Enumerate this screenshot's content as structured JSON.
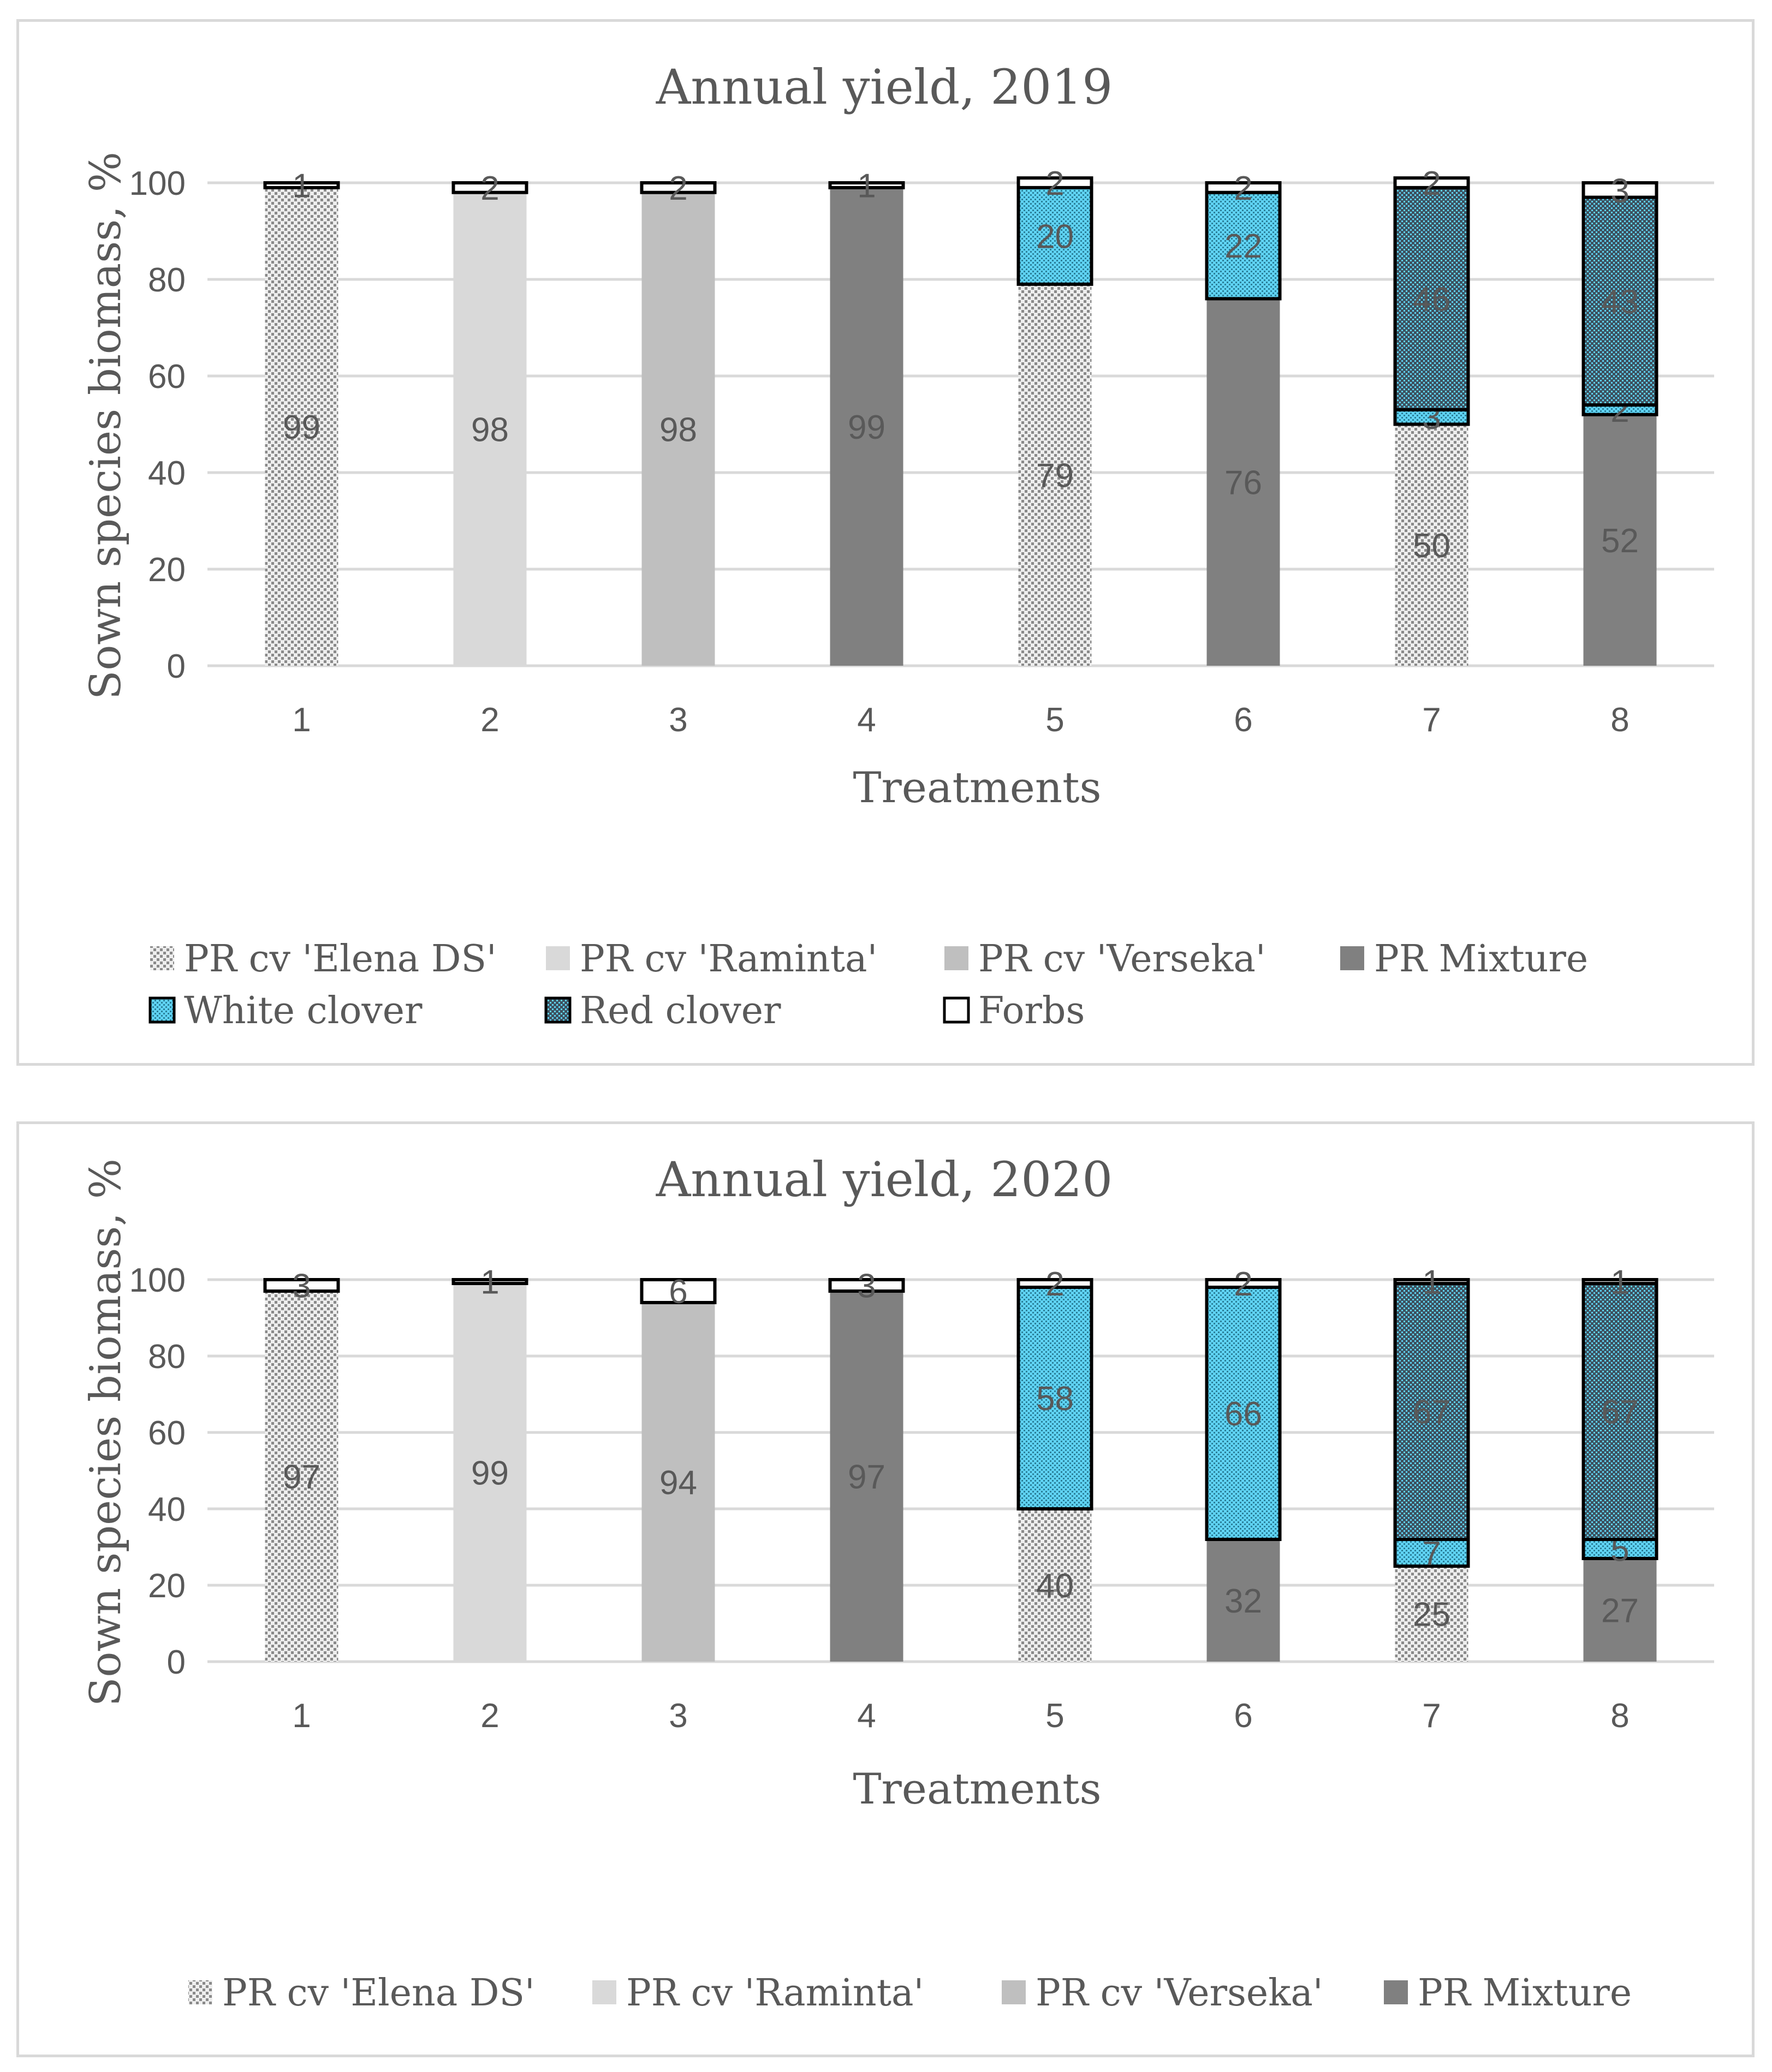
{
  "colors": {
    "grid": "#d9d9d9",
    "PR cv 'Elena DS'": "#c8c8c8",
    "PR cv 'Raminta'": "#d9d9d9",
    "PR cv 'Verseka'": "#bfbfbf",
    "PR Mixture": "#808080",
    "White clover": "#5fd3f3",
    "Red clover": "#3b4f5c",
    "Forbs": "#ffffff",
    "text": "#595959"
  },
  "chart_data": [
    {
      "type": "bar",
      "stacked": true,
      "title": "Annual yield, 2019",
      "xlabel": "Treatments",
      "ylabel": "Sown species biomass, %",
      "ylim": [
        0,
        100
      ],
      "yticks": [
        "0",
        "20",
        "40",
        "60",
        "80",
        "100"
      ],
      "grid": true,
      "legend_position": "bottom",
      "categories": [
        "1",
        "2",
        "3",
        "4",
        "5",
        "6",
        "7",
        "8"
      ],
      "legend": [
        "PR cv 'Elena DS'",
        "PR cv 'Raminta'",
        "PR cv 'Verseka'",
        "PR Mixture",
        "White clover",
        "Red clover",
        "Forbs"
      ],
      "series": [
        {
          "name": "PR cv 'Elena DS'",
          "values": [
            99,
            0,
            0,
            0,
            79,
            0,
            50,
            0
          ]
        },
        {
          "name": "PR cv 'Raminta'",
          "values": [
            0,
            98,
            0,
            0,
            0,
            0,
            0,
            0
          ]
        },
        {
          "name": "PR cv 'Verseka'",
          "values": [
            0,
            0,
            98,
            0,
            0,
            0,
            0,
            0
          ]
        },
        {
          "name": "PR Mixture",
          "values": [
            0,
            0,
            0,
            99,
            0,
            76,
            0,
            52
          ]
        },
        {
          "name": "White clover",
          "values": [
            0,
            0,
            0,
            0,
            20,
            22,
            3,
            2
          ]
        },
        {
          "name": "Red clover",
          "values": [
            0,
            0,
            0,
            0,
            0,
            0,
            46,
            43
          ]
        },
        {
          "name": "Forbs",
          "values": [
            1,
            2,
            2,
            1,
            2,
            2,
            2,
            3
          ]
        }
      ]
    },
    {
      "type": "bar",
      "stacked": true,
      "title": "Annual yield, 2020",
      "xlabel": "Treatments",
      "ylabel": "Sown species biomass, %",
      "ylim": [
        0,
        100
      ],
      "yticks": [
        "0",
        "20",
        "40",
        "60",
        "80",
        "100"
      ],
      "grid": true,
      "legend_position": "bottom",
      "categories": [
        "1",
        "2",
        "3",
        "4",
        "5",
        "6",
        "7",
        "8"
      ],
      "legend": [
        "PR cv 'Elena DS'",
        "PR cv 'Raminta'",
        "PR cv 'Verseka'",
        "PR Mixture"
      ],
      "series": [
        {
          "name": "PR cv 'Elena DS'",
          "values": [
            97,
            0,
            0,
            0,
            40,
            0,
            25,
            0
          ]
        },
        {
          "name": "PR cv 'Raminta'",
          "values": [
            0,
            99,
            0,
            0,
            0,
            0,
            0,
            0
          ]
        },
        {
          "name": "PR cv 'Verseka'",
          "values": [
            0,
            0,
            94,
            0,
            0,
            0,
            0,
            0
          ]
        },
        {
          "name": "PR Mixture",
          "values": [
            0,
            0,
            0,
            97,
            0,
            32,
            0,
            27
          ]
        },
        {
          "name": "White clover",
          "values": [
            0,
            0,
            0,
            0,
            58,
            66,
            7,
            5
          ]
        },
        {
          "name": "Red clover",
          "values": [
            0,
            0,
            0,
            0,
            0,
            0,
            67,
            67
          ]
        },
        {
          "name": "Forbs",
          "values": [
            3,
            1,
            6,
            3,
            2,
            2,
            1,
            1
          ]
        }
      ]
    }
  ]
}
